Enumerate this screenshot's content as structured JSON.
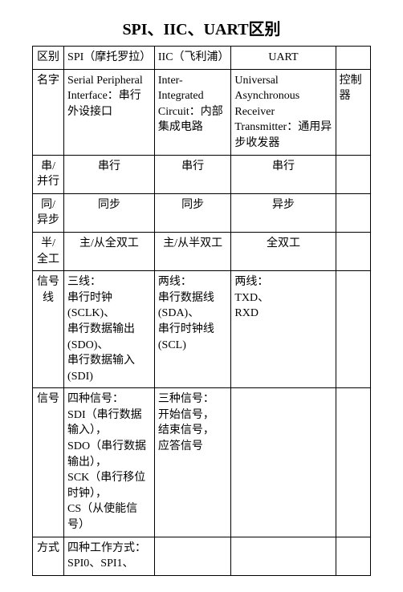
{
  "title": "SPI、IIC、UART区别",
  "columns": {
    "h": "区别",
    "a": "SPI（摩托罗拉）",
    "b": "IIC（飞利浦）",
    "c": "UART",
    "d": ""
  },
  "rows": {
    "name": {
      "h": "名字",
      "a": "Serial Peripheral Interface：串行外设接口",
      "b": "Inter-Integrated Circuit：内部集成电路",
      "c": "Universal Asynchronous Receiver Transmitter：通用异步收发器",
      "d": "控制器"
    },
    "serial": {
      "h": "串/并行",
      "a": "串行",
      "b": "串行",
      "c": "串行",
      "d": ""
    },
    "sync": {
      "h": "同/异步",
      "a": "同步",
      "b": "同步",
      "c": "异步",
      "d": ""
    },
    "duplex": {
      "h": "半/全工",
      "a": "主/从全双工",
      "b": "主/从半双工",
      "c": "全双工",
      "d": ""
    },
    "lines": {
      "h": "信号线",
      "a": "三线：\n串行时钟(SCLK)、\n串行数据输出(SDO)、\n串行数据输入(SDI)",
      "b": "两线：\n串行数据线(SDA)、\n串行时钟线(SCL)",
      "c": "两线：\nTXD、\nRXD",
      "d": ""
    },
    "signals": {
      "h": "信号",
      "a": "四种信号：\nSDI（串行数据输入），\nSDO（串行数据输出），\nSCK（串行移位时钟），\nCS（从使能信号）",
      "b": "三种信号：\n开始信号，\n结束信号，\n应答信号",
      "c": "",
      "d": ""
    },
    "mode": {
      "h": "方式",
      "a": "四种工作方式：\nSPI0、SPI1、",
      "b": "",
      "c": "",
      "d": ""
    }
  }
}
